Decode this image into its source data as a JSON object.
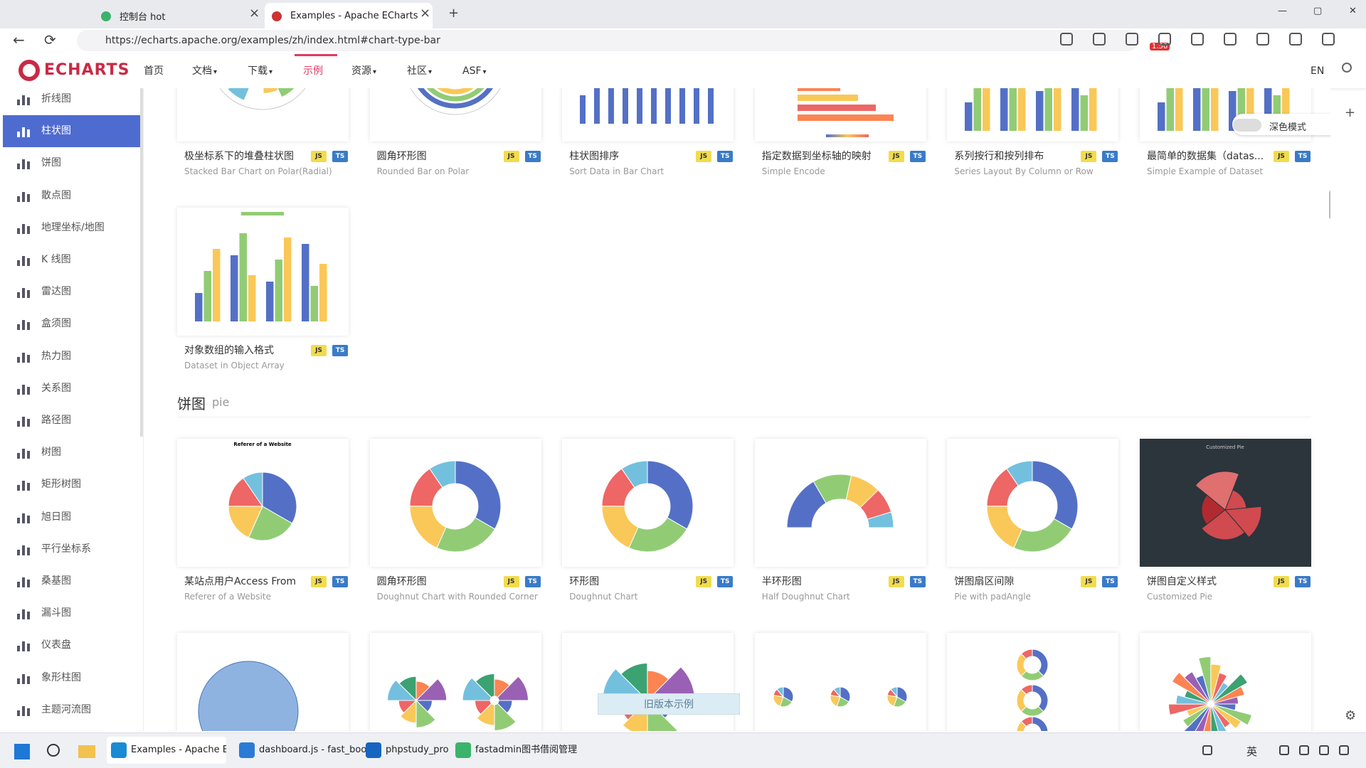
{
  "browser": {
    "tabs": [
      "控制台 hot",
      "Examples - Apache ECharts"
    ],
    "url": "https://echarts.apache.org/examples/zh/index.html#chart-type-bar",
    "extension_badge": "1.50"
  },
  "nav": {
    "logo": "ECHARTS",
    "items": [
      "首页",
      "文档",
      "下载",
      "示例",
      "资源",
      "社区",
      "ASF"
    ],
    "lang": "EN"
  },
  "sidebar": [
    "折线图",
    "柱状图",
    "饼图",
    "散点图",
    "地理坐标/地图",
    "K 线图",
    "雷达图",
    "盒须图",
    "热力图",
    "关系图",
    "路径图",
    "树图",
    "矩形树图",
    "旭日图",
    "平行坐标系",
    "桑基图",
    "漏斗图",
    "仪表盘",
    "象形柱图",
    "主题河流图"
  ],
  "dark_mode": "深色模式",
  "badges": [
    "JS",
    "TS"
  ],
  "bar_cards": [
    {
      "title": "极坐标系下的堆叠柱状图",
      "subtitle": "Stacked Bar Chart on Polar(Radial)"
    },
    {
      "title": "圆角环形图",
      "subtitle": "Rounded Bar on Polar"
    },
    {
      "title": "柱状图排序",
      "subtitle": "Sort Data in Bar Chart"
    },
    {
      "title": "指定数据到坐标轴的映射",
      "subtitle": "Simple Encode"
    },
    {
      "title": "系列按行和按列排布",
      "subtitle": "Series Layout By Column or Row"
    },
    {
      "title": "最简单的数据集（datas...",
      "subtitle": "Simple Example of Dataset"
    },
    {
      "title": "对象数组的输入格式",
      "subtitle": "Dataset in Object Array"
    }
  ],
  "pie_section": {
    "title": "饼图",
    "subtitle": "pie",
    "cards": [
      {
        "title": "某站点用户Access From",
        "subtitle": "Referer of a Website"
      },
      {
        "title": "圆角环形图",
        "subtitle": "Doughnut Chart with Rounded Corner"
      },
      {
        "title": "环形图",
        "subtitle": "Doughnut Chart"
      },
      {
        "title": "半环形图",
        "subtitle": "Half Doughnut Chart"
      },
      {
        "title": "饼图扇区间隙",
        "subtitle": "Pie with padAngle"
      },
      {
        "title": "饼图自定义样式",
        "subtitle": "Customized Pie"
      }
    ]
  },
  "popup": "旧版本示例",
  "taskbar": {
    "apps": [
      "Examples - Apache ECh:",
      "dashboard.js - fast_bool",
      "phpstudy_pro",
      "fastadmin图书借阅管理"
    ],
    "ime": "英"
  }
}
